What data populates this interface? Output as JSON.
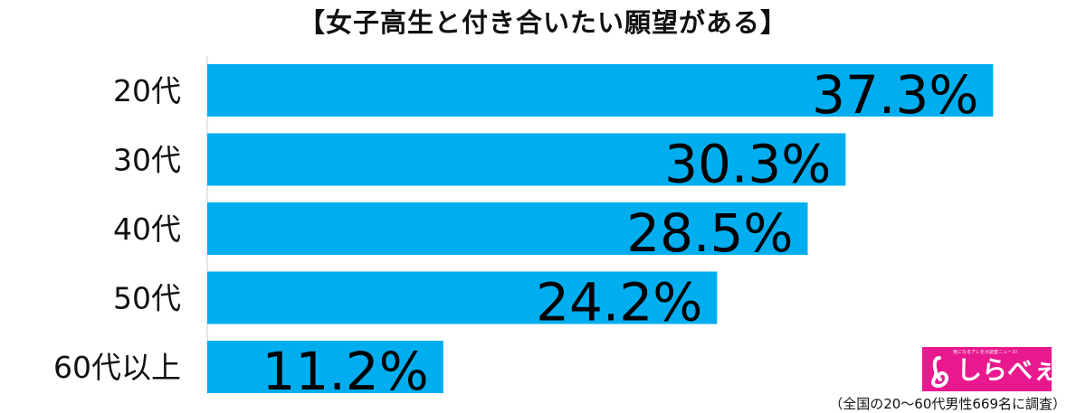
{
  "chart_data": {
    "type": "bar",
    "orientation": "horizontal",
    "title": "【女子高生と付き合いたい願望がある】",
    "categories": [
      "20代",
      "30代",
      "40代",
      "50代",
      "60代以上"
    ],
    "values": [
      37.3,
      30.3,
      28.5,
      24.2,
      11.2
    ],
    "value_labels": [
      "37.3%",
      "30.3%",
      "28.5%",
      "24.2%",
      "11.2%"
    ],
    "xlim": [
      0,
      39
    ],
    "bar_color": "#00aeef",
    "grid": false,
    "legend": "none"
  },
  "logo": {
    "name": "しらべぇ",
    "tagline": "気になるアレを大調査ニュース!"
  },
  "footnote": "（全国の20〜60代男性669名に調査）"
}
